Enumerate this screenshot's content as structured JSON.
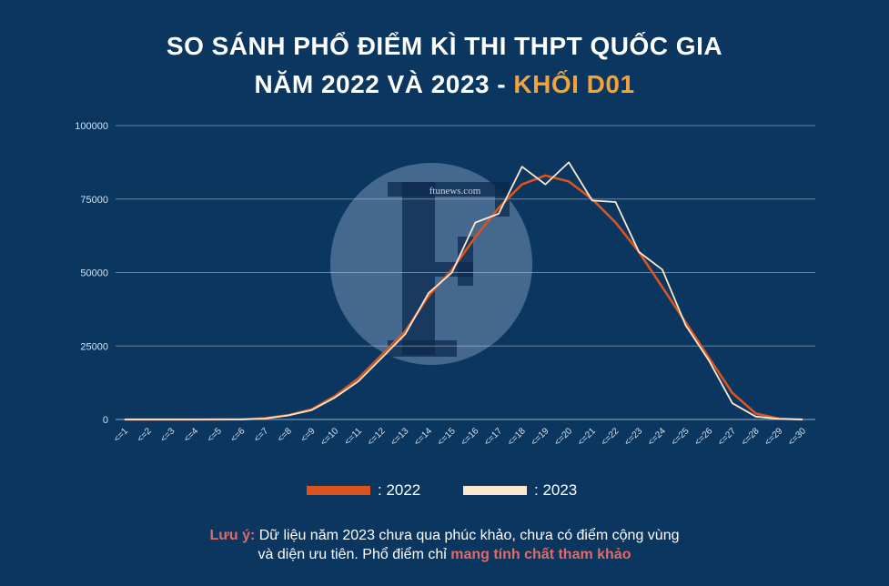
{
  "title": {
    "line1": "SO SÁNH PHỔ ĐIỂM KÌ THI THPT QUỐC GIA",
    "line2": "NĂM 2022 VÀ 2023 - ",
    "highlight": "KHỐI D01"
  },
  "watermark": {
    "text": "ftunews.com",
    "letter": "F"
  },
  "note": {
    "label": "Lưu ý:",
    "text1": " Dữ liệu năm 2023 chưa qua phúc khảo, chưa có điểm cộng vùng",
    "text2": "và diện ưu tiên. Phổ điểm chỉ ",
    "emphasis": "mang tính chất tham khảo"
  },
  "colors": {
    "bg": "#0b3660",
    "s2022": "#d9541e",
    "s2023": "#fbe9cf",
    "accent": "#f2a33a",
    "warn": "#e46a66"
  },
  "chart_data": {
    "type": "line",
    "categories": [
      "<=1",
      "<=2",
      "<=3",
      "<=4",
      "<=5",
      "<=6",
      "<=7",
      "<=8",
      "<=9",
      "<=10",
      "<=11",
      "<=12",
      "<=13",
      "<=14",
      "<=15",
      "<=16",
      "<=17",
      "<=18",
      "<=19",
      "<=20",
      "<=21",
      "<=22",
      "<=23",
      "<=24",
      "<=25",
      "<=26",
      "<=27",
      "<=28",
      "<=29",
      "<=30"
    ],
    "ylim": [
      0,
      100000
    ],
    "yticks": [
      "0",
      "25000",
      "50000",
      "75000",
      "100000"
    ],
    "grid": true,
    "legend_position": "bottom",
    "series": [
      {
        "name": ": 2022",
        "color": "#d9541e",
        "values": [
          0,
          0,
          0,
          0,
          50,
          100,
          400,
          1500,
          3500,
          8000,
          14000,
          22000,
          30000,
          42000,
          51000,
          62000,
          72000,
          80000,
          83000,
          81000,
          75000,
          67000,
          57000,
          45000,
          33000,
          21000,
          9000,
          2000,
          300,
          0
        ]
      },
      {
        "name": ": 2023",
        "color": "#fbe9cf",
        "values": [
          0,
          0,
          0,
          0,
          0,
          0,
          300,
          1400,
          3200,
          7500,
          13000,
          21000,
          29000,
          43000,
          50000,
          67000,
          70000,
          86000,
          80000,
          87500,
          74500,
          74000,
          57000,
          51000,
          32000,
          20000,
          5500,
          1000,
          200,
          0
        ]
      }
    ]
  }
}
